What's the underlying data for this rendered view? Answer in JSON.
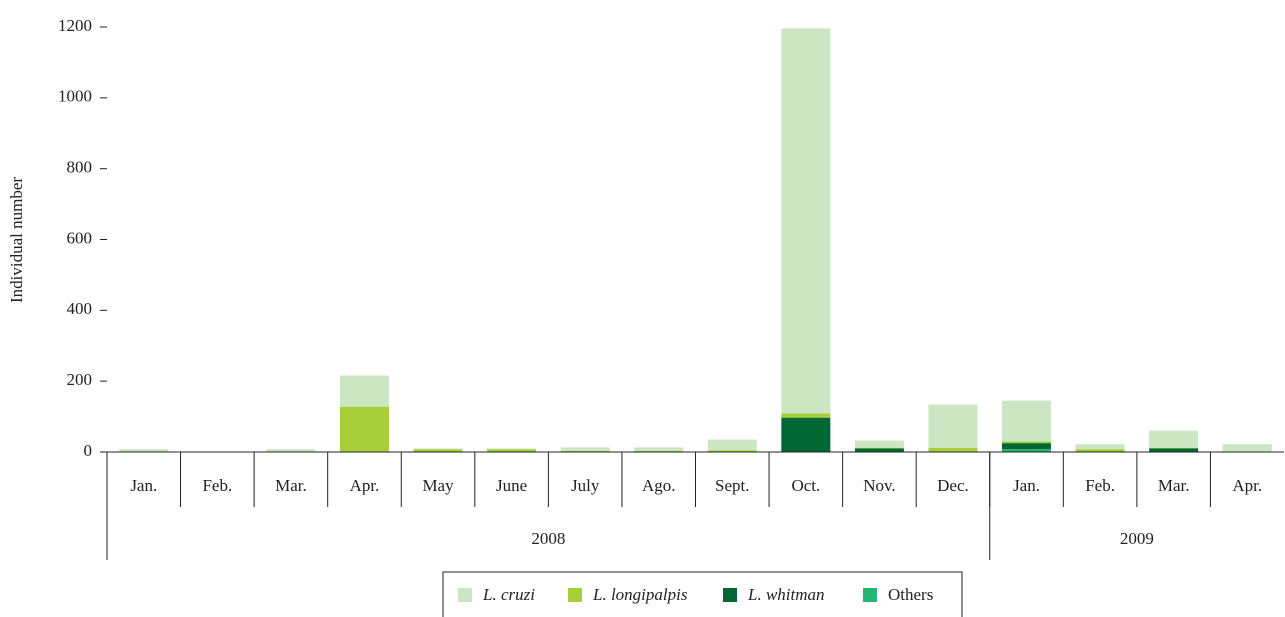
{
  "chart_data": {
    "type": "stacked_bar",
    "y_label": "Individual number",
    "categories": [
      "Jan.",
      "Feb.",
      "Mar.",
      "Apr.",
      "May",
      "June",
      "July",
      "Ago.",
      "Sept.",
      "Oct.",
      "Nov.",
      "Dec.",
      "Jan.",
      "Feb.",
      "Mar.",
      "Apr."
    ],
    "groups": [
      {
        "label": "2008",
        "span": 12
      },
      {
        "label": "2009",
        "span": 4
      }
    ],
    "series": [
      {
        "name": "Others",
        "color": "#22b573",
        "italic": false,
        "values": [
          0,
          0,
          0,
          0,
          0,
          0,
          0,
          0,
          0,
          0,
          0,
          0,
          8,
          0,
          0,
          0
        ]
      },
      {
        "name": "L. whitman",
        "color": "#006633",
        "italic": true,
        "values": [
          0,
          0,
          0,
          0,
          0,
          0,
          0,
          0,
          0,
          97,
          10,
          0,
          17,
          0,
          10,
          0
        ]
      },
      {
        "name": "L. longipalpis",
        "color": "#a6ce39",
        "italic": true,
        "values": [
          0,
          0,
          0,
          128,
          8,
          8,
          3,
          3,
          5,
          12,
          2,
          12,
          5,
          8,
          2,
          2
        ]
      },
      {
        "name": "L. cruzi",
        "color": "#cce6c4",
        "italic": true,
        "values": [
          8,
          0,
          8,
          88,
          2,
          2,
          10,
          10,
          30,
          1087,
          20,
          122,
          115,
          14,
          48,
          20
        ]
      }
    ],
    "legend_order": [
      3,
      2,
      1,
      0
    ],
    "ylim": [
      0,
      1200
    ],
    "yticks": [
      0,
      200,
      400,
      600,
      800,
      1000,
      1200
    ]
  }
}
